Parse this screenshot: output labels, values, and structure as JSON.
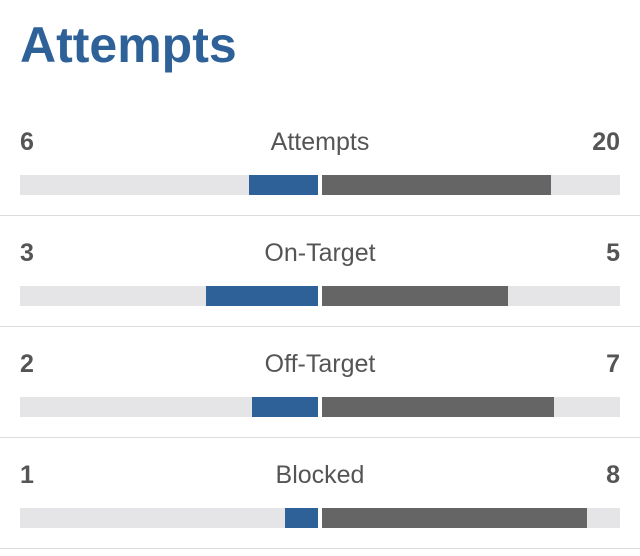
{
  "header": {
    "title": "Attempts"
  },
  "rows": [
    {
      "label": "Attempts",
      "home": 6,
      "away": 20
    },
    {
      "label": "On-Target",
      "home": 3,
      "away": 5
    },
    {
      "label": "Off-Target",
      "home": 2,
      "away": 7
    },
    {
      "label": "Blocked",
      "home": 1,
      "away": 8
    }
  ],
  "colors": {
    "home": "#2f6199",
    "away": "#656565"
  }
}
